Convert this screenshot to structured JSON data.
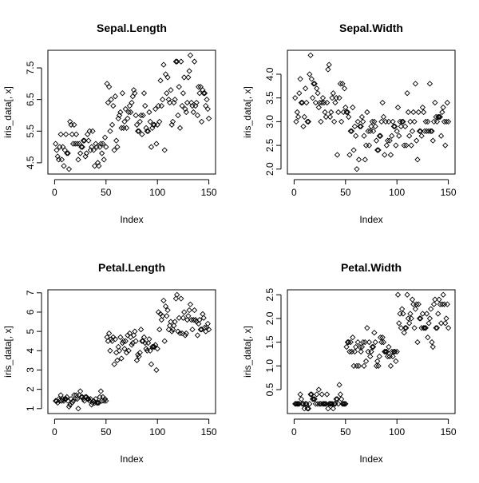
{
  "chart_data": [
    {
      "type": "scatter",
      "title": "Sepal.Length",
      "xlabel": "Index",
      "ylabel": "iris_data[, x]",
      "xlim": [
        0,
        150
      ],
      "ylim": [
        4.3,
        7.9
      ],
      "xticks": [
        "0",
        "50",
        "100",
        "150"
      ],
      "yticks": [
        "4.5",
        "5.5",
        "6.5",
        "7.5"
      ],
      "series": [
        {
          "values": [
            5.1,
            4.9,
            4.7,
            4.6,
            5.0,
            5.4,
            4.6,
            5.0,
            4.4,
            4.9,
            5.4,
            4.8,
            4.8,
            4.3,
            5.8,
            5.7,
            5.4,
            5.1,
            5.7,
            5.1,
            5.4,
            5.1,
            4.6,
            5.1,
            4.8,
            5.0,
            5.0,
            5.2,
            5.2,
            4.7,
            4.8,
            5.4,
            5.2,
            5.5,
            4.9,
            5.0,
            5.5,
            4.9,
            4.4,
            5.1,
            5.0,
            4.5,
            4.4,
            5.0,
            5.1,
            4.8,
            5.1,
            4.6,
            5.3,
            5.0,
            7.0,
            6.4,
            6.9,
            5.5,
            6.5,
            5.7,
            6.3,
            4.9,
            6.6,
            5.2,
            5.0,
            5.9,
            6.0,
            6.1,
            5.6,
            6.7,
            5.6,
            5.8,
            6.2,
            5.6,
            5.9,
            6.1,
            6.3,
            6.1,
            6.4,
            6.6,
            6.8,
            6.7,
            6.0,
            5.7,
            5.5,
            5.5,
            5.8,
            6.0,
            5.4,
            6.0,
            6.7,
            6.3,
            5.6,
            5.5,
            5.5,
            6.1,
            5.8,
            5.0,
            5.6,
            5.7,
            5.7,
            6.2,
            5.1,
            5.7,
            6.3,
            5.8,
            7.1,
            6.3,
            6.5,
            7.6,
            4.9,
            7.3,
            6.7,
            7.2,
            6.5,
            6.4,
            6.8,
            5.7,
            5.8,
            6.4,
            6.5,
            7.7,
            7.7,
            6.0,
            6.9,
            5.6,
            7.7,
            6.3,
            6.7,
            7.2,
            6.2,
            6.1,
            6.4,
            7.2,
            7.4,
            7.9,
            6.4,
            6.3,
            6.1,
            7.7,
            6.3,
            6.4,
            6.0,
            6.9,
            6.7,
            6.9,
            5.8,
            6.8,
            6.7,
            6.7,
            6.3,
            6.5,
            6.2,
            5.9
          ]
        }
      ]
    },
    {
      "type": "scatter",
      "title": "Sepal.Width",
      "xlabel": "Index",
      "ylabel": "iris_data[, x]",
      "xlim": [
        0,
        150
      ],
      "ylim": [
        2.0,
        4.4
      ],
      "xticks": [
        "0",
        "50",
        "100",
        "150"
      ],
      "yticks": [
        "2.0",
        "2.5",
        "3.0",
        "3.5",
        "4.0"
      ],
      "series": [
        {
          "values": [
            3.5,
            3.0,
            3.2,
            3.1,
            3.6,
            3.9,
            3.4,
            3.4,
            2.9,
            3.1,
            3.7,
            3.4,
            3.0,
            3.0,
            4.0,
            4.4,
            3.9,
            3.5,
            3.8,
            3.8,
            3.4,
            3.7,
            3.6,
            3.3,
            3.4,
            3.0,
            3.4,
            3.5,
            3.4,
            3.2,
            3.1,
            3.4,
            4.1,
            4.2,
            3.1,
            3.2,
            3.5,
            3.6,
            3.0,
            3.4,
            3.5,
            2.3,
            3.2,
            3.5,
            3.8,
            3.0,
            3.8,
            3.2,
            3.7,
            3.3,
            3.2,
            3.2,
            3.1,
            2.3,
            2.8,
            2.8,
            3.3,
            2.4,
            2.9,
            2.7,
            2.0,
            3.0,
            2.2,
            2.9,
            2.9,
            3.1,
            3.0,
            2.7,
            2.2,
            2.5,
            3.2,
            2.8,
            2.5,
            2.8,
            2.9,
            3.0,
            2.8,
            3.0,
            2.9,
            2.6,
            2.4,
            2.4,
            2.7,
            2.7,
            3.0,
            3.4,
            3.1,
            2.3,
            3.0,
            2.5,
            2.6,
            3.0,
            2.6,
            2.3,
            2.7,
            3.0,
            2.9,
            2.9,
            2.5,
            2.8,
            3.3,
            2.7,
            3.0,
            2.9,
            3.0,
            3.0,
            2.5,
            2.9,
            2.5,
            3.6,
            3.2,
            2.7,
            3.0,
            2.5,
            2.8,
            3.2,
            3.0,
            3.8,
            2.6,
            2.2,
            3.2,
            2.8,
            2.8,
            2.7,
            3.3,
            3.2,
            2.8,
            3.0,
            2.8,
            3.0,
            2.8,
            3.8,
            2.8,
            2.8,
            2.6,
            3.0,
            3.4,
            3.1,
            3.0,
            3.1,
            3.1,
            3.1,
            2.7,
            3.2,
            3.3,
            3.0,
            2.5,
            3.0,
            3.4,
            3.0
          ]
        }
      ]
    },
    {
      "type": "scatter",
      "title": "Petal.Length",
      "xlabel": "Index",
      "ylabel": "iris_data[, x]",
      "xlim": [
        0,
        150
      ],
      "ylim": [
        1.0,
        6.9
      ],
      "xticks": [
        "0",
        "50",
        "100",
        "150"
      ],
      "yticks": [
        "1",
        "2",
        "3",
        "4",
        "5",
        "6",
        "7"
      ],
      "series": [
        {
          "values": [
            1.4,
            1.4,
            1.3,
            1.5,
            1.4,
            1.7,
            1.4,
            1.5,
            1.4,
            1.5,
            1.5,
            1.6,
            1.4,
            1.1,
            1.2,
            1.5,
            1.3,
            1.4,
            1.7,
            1.5,
            1.7,
            1.5,
            1.0,
            1.7,
            1.9,
            1.6,
            1.6,
            1.5,
            1.4,
            1.6,
            1.6,
            1.5,
            1.5,
            1.4,
            1.5,
            1.2,
            1.3,
            1.4,
            1.3,
            1.5,
            1.3,
            1.3,
            1.3,
            1.6,
            1.9,
            1.4,
            1.6,
            1.4,
            1.5,
            1.4,
            4.7,
            4.5,
            4.9,
            4.0,
            4.6,
            4.5,
            4.7,
            3.3,
            4.6,
            3.9,
            3.5,
            4.2,
            4.0,
            4.7,
            3.6,
            4.4,
            4.5,
            4.1,
            4.5,
            3.9,
            4.8,
            4.0,
            4.9,
            4.7,
            4.3,
            4.4,
            4.8,
            5.0,
            4.5,
            3.5,
            3.8,
            3.7,
            3.9,
            5.1,
            4.5,
            4.5,
            4.7,
            4.4,
            4.1,
            4.0,
            4.4,
            4.6,
            4.0,
            3.3,
            4.2,
            4.2,
            4.2,
            4.3,
            3.0,
            4.1,
            6.0,
            5.1,
            5.9,
            5.6,
            5.8,
            6.6,
            4.5,
            6.3,
            5.8,
            6.1,
            5.1,
            5.3,
            5.5,
            5.0,
            5.1,
            5.3,
            5.5,
            6.7,
            6.9,
            5.0,
            5.7,
            4.9,
            6.7,
            4.9,
            5.7,
            6.0,
            4.8,
            4.9,
            5.6,
            5.8,
            6.1,
            6.4,
            5.6,
            5.1,
            5.6,
            6.1,
            5.6,
            5.5,
            4.8,
            5.4,
            5.6,
            5.1,
            5.1,
            5.9,
            5.7,
            5.2,
            5.0,
            5.2,
            5.4,
            5.1
          ]
        }
      ]
    },
    {
      "type": "scatter",
      "title": "Petal.Width",
      "xlabel": "Index",
      "ylabel": "iris_data[, x]",
      "xlim": [
        0,
        150
      ],
      "ylim": [
        0.1,
        2.5
      ],
      "xticks": [
        "0",
        "50",
        "100",
        "150"
      ],
      "yticks": [
        "0.5",
        "1.0",
        "1.5",
        "2.0",
        "2.5"
      ],
      "series": [
        {
          "values": [
            0.2,
            0.2,
            0.2,
            0.2,
            0.2,
            0.4,
            0.3,
            0.2,
            0.2,
            0.1,
            0.2,
            0.2,
            0.1,
            0.1,
            0.2,
            0.4,
            0.4,
            0.3,
            0.3,
            0.3,
            0.2,
            0.4,
            0.2,
            0.5,
            0.2,
            0.2,
            0.4,
            0.2,
            0.2,
            0.2,
            0.2,
            0.4,
            0.1,
            0.2,
            0.2,
            0.2,
            0.2,
            0.1,
            0.2,
            0.2,
            0.3,
            0.3,
            0.2,
            0.6,
            0.4,
            0.3,
            0.2,
            0.2,
            0.2,
            0.2,
            1.4,
            1.5,
            1.5,
            1.3,
            1.5,
            1.3,
            1.6,
            1.0,
            1.3,
            1.4,
            1.0,
            1.5,
            1.0,
            1.4,
            1.3,
            1.4,
            1.5,
            1.0,
            1.5,
            1.1,
            1.8,
            1.3,
            1.5,
            1.2,
            1.3,
            1.4,
            1.4,
            1.7,
            1.5,
            1.0,
            1.1,
            1.0,
            1.2,
            1.6,
            1.5,
            1.6,
            1.5,
            1.3,
            1.3,
            1.3,
            1.2,
            1.4,
            1.2,
            1.0,
            1.3,
            1.2,
            1.3,
            1.3,
            1.1,
            1.3,
            2.5,
            1.9,
            2.1,
            1.8,
            2.2,
            2.1,
            1.7,
            1.8,
            1.8,
            2.5,
            2.0,
            1.9,
            2.1,
            2.0,
            2.4,
            2.3,
            1.8,
            2.2,
            2.3,
            1.5,
            2.3,
            2.0,
            2.0,
            1.8,
            2.1,
            1.8,
            1.8,
            1.8,
            2.1,
            1.6,
            1.9,
            2.0,
            2.2,
            1.5,
            1.4,
            2.3,
            2.4,
            1.8,
            1.8,
            2.1,
            2.4,
            2.3,
            1.9,
            2.3,
            2.5,
            2.3,
            1.9,
            2.0,
            2.3,
            1.8
          ]
        }
      ]
    }
  ]
}
